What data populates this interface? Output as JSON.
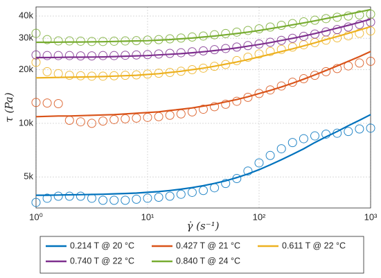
{
  "chart_data": {
    "type": "scatter",
    "xlabel": "γ̇ (s⁻¹)",
    "ylabel": "τ (Pa)",
    "log_x": true,
    "log_y": true,
    "grid": true,
    "xlim": [
      1,
      1000
    ],
    "xticks": [
      {
        "value": 1,
        "label": "10⁰"
      },
      {
        "value": 10,
        "label": "10¹"
      },
      {
        "value": 100,
        "label": "10²"
      },
      {
        "value": 1000,
        "label": "10³"
      }
    ],
    "ylim": [
      3350,
      45000
    ],
    "yticks": [
      {
        "value": 5000,
        "label": "5k"
      },
      {
        "value": 10000,
        "label": "10k"
      },
      {
        "value": 20000,
        "label": "20k"
      },
      {
        "value": 30000,
        "label": "30k"
      },
      {
        "value": 40000,
        "label": "40k"
      }
    ],
    "x": [
      1,
      1.259,
      1.585,
      1.995,
      2.512,
      3.162,
      3.981,
      5.012,
      6.31,
      7.943,
      10,
      12.59,
      15.85,
      19.95,
      25.12,
      31.62,
      39.81,
      50.12,
      63.1,
      79.43,
      100,
      125.9,
      158.5,
      199.5,
      251.2,
      316.2,
      398.1,
      501.2,
      631,
      794.3,
      1000
    ],
    "series": [
      {
        "name": "0.214 T @ 20 °C",
        "color": "#0072BD",
        "values": [
          3600,
          3800,
          3900,
          3900,
          3900,
          3800,
          3700,
          3700,
          3700,
          3750,
          3800,
          3850,
          3900,
          4000,
          4100,
          4200,
          4350,
          4600,
          4900,
          5400,
          6000,
          6600,
          7200,
          7800,
          8200,
          8500,
          8700,
          8800,
          9000,
          9300,
          9400
        ],
        "fit": [
          3950,
          3950,
          3960,
          3970,
          3980,
          3990,
          4000,
          4020,
          4040,
          4060,
          4100,
          4140,
          4200,
          4270,
          4360,
          4470,
          4600,
          4760,
          4960,
          5200,
          5500,
          5850,
          6250,
          6700,
          7200,
          7800,
          8400,
          9000,
          9700,
          10400,
          11200
        ]
      },
      {
        "name": "0.427 T @ 21 °C",
        "color": "#D95319",
        "values": [
          13100,
          13000,
          12900,
          10400,
          10200,
          10000,
          10300,
          10500,
          10600,
          10700,
          10800,
          10900,
          11100,
          11300,
          11600,
          12000,
          12400,
          12800,
          13300,
          14000,
          14700,
          15400,
          16200,
          17000,
          17800,
          18600,
          19500,
          20300,
          21000,
          21800,
          22300
        ],
        "fit": [
          10900,
          10950,
          11000,
          11000,
          11050,
          11100,
          11150,
          11200,
          11300,
          11400,
          11500,
          11600,
          11800,
          12000,
          12200,
          12500,
          12800,
          13200,
          13600,
          14100,
          14700,
          15300,
          16000,
          16800,
          17700,
          18700,
          19800,
          21000,
          22300,
          23700,
          25300
        ]
      },
      {
        "name": "0.611 T @ 22 °C",
        "color": "#EDB120",
        "values": [
          22000,
          19500,
          19000,
          18600,
          18500,
          18400,
          18400,
          18500,
          18600,
          18700,
          18900,
          19100,
          19300,
          19600,
          20000,
          20400,
          20900,
          21400,
          22500,
          23500,
          24500,
          25300,
          26000,
          26800,
          27600,
          28400,
          29300,
          30200,
          31000,
          32000,
          33000
        ],
        "fit": [
          18000,
          18050,
          18100,
          18150,
          18200,
          18250,
          18300,
          18400,
          18500,
          18600,
          18800,
          19000,
          19300,
          19600,
          20000,
          20400,
          20900,
          21500,
          22100,
          22800,
          23600,
          24400,
          25300,
          26200,
          27200,
          28300,
          29500,
          30700,
          32000,
          33400,
          34900
        ]
      },
      {
        "name": "0.740 T @ 22 °C",
        "color": "#7E2F8E",
        "values": [
          24200,
          24000,
          24000,
          24000,
          23900,
          23900,
          24000,
          24000,
          24100,
          24200,
          24300,
          24500,
          24700,
          24900,
          25200,
          25500,
          25900,
          26300,
          26800,
          27300,
          27900,
          28500,
          29200,
          30000,
          30800,
          31700,
          32600,
          33600,
          34700,
          35900,
          37000
        ],
        "fit": [
          23400,
          23400,
          23450,
          23500,
          23500,
          23550,
          23600,
          23700,
          23800,
          23900,
          24000,
          24200,
          24400,
          24600,
          24900,
          25200,
          25600,
          26000,
          26500,
          27100,
          27700,
          28400,
          29200,
          30000,
          30900,
          31900,
          33000,
          34200,
          35500,
          36900,
          38400
        ]
      },
      {
        "name": "0.840 T @ 24 °C",
        "color": "#77AC30",
        "values": [
          32000,
          29500,
          29000,
          29000,
          28900,
          28800,
          28800,
          28900,
          29000,
          29100,
          29300,
          29500,
          29800,
          30100,
          30500,
          30900,
          31400,
          31900,
          32500,
          33200,
          33900,
          34700,
          35500,
          36300,
          37100,
          37900,
          38700,
          39400,
          40000,
          40600,
          41000
        ],
        "fit": [
          28500,
          28500,
          28550,
          28600,
          28600,
          28650,
          28700,
          28800,
          28900,
          29000,
          29100,
          29300,
          29500,
          29800,
          30100,
          30500,
          30900,
          31400,
          31900,
          32500,
          33200,
          34000,
          34800,
          35700,
          36600,
          37600,
          38700,
          39800,
          41000,
          42200,
          43500
        ]
      }
    ]
  }
}
